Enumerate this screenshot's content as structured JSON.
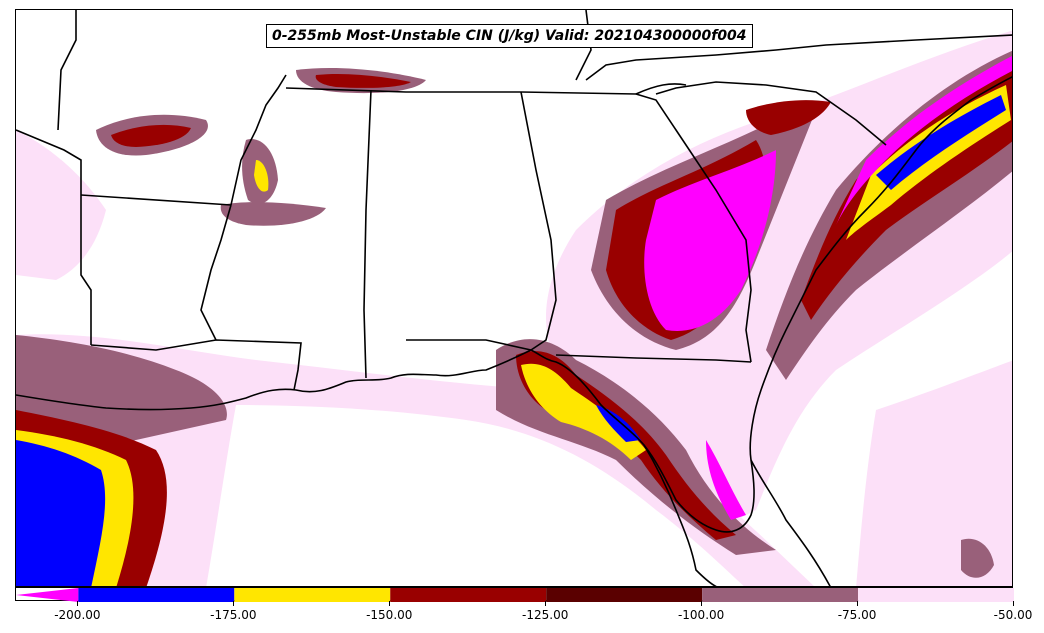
{
  "title": "0-255mb Most-Unstable CIN (J/kg) Valid: 202104300000f004",
  "colorbar": {
    "ticks": [
      "-200.00",
      "-175.00",
      "-150.00",
      "-125.00",
      "-100.00",
      "-75.00",
      "-50.00"
    ],
    "bins": [
      {
        "from": -200,
        "to": -175,
        "color": "#0000ff"
      },
      {
        "from": -175,
        "to": -150,
        "color": "#ffe600"
      },
      {
        "from": -150,
        "to": -125,
        "color": "#990000"
      },
      {
        "from": -125,
        "to": -100,
        "color": "#5a0000"
      },
      {
        "from": -100,
        "to": -75,
        "color": "#99607a"
      },
      {
        "from": -75,
        "to": -50,
        "color": "#fce0f8"
      }
    ],
    "under_color": "#ff00ff"
  },
  "map": {
    "background": "#ffffff",
    "boundary_color": "#000000",
    "shading_levels": {
      "magenta": "#ff00ff",
      "blue": "#0000ff",
      "yellow": "#ffe600",
      "red": "#990000",
      "darkred": "#5a0000",
      "mauve": "#99607a",
      "pink": "#fce0f8"
    }
  }
}
